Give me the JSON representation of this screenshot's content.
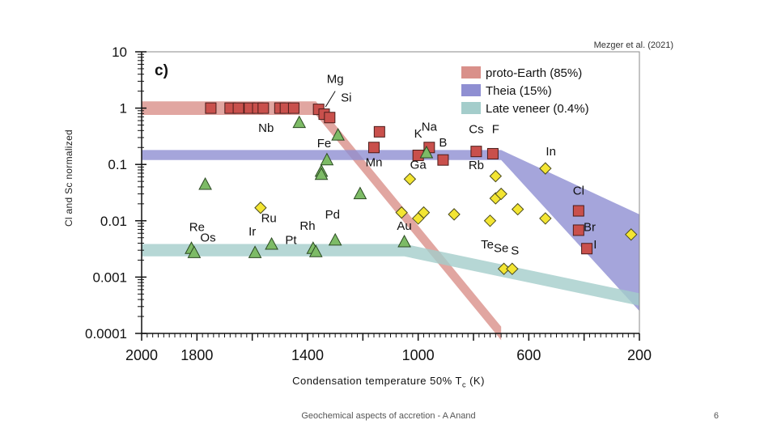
{
  "slide": {
    "credit": "Mezger et al. (2021)",
    "ylabel": "Cl and Sc normalized",
    "xlabel_main": "Condensation temperature 50% T",
    "xlabel_sub": "c",
    "xlabel_unit": " (K)",
    "footer": "Geochemical aspects of accretion - A Anand",
    "page_number": "6"
  },
  "chart_data": {
    "type": "scatter",
    "panel_label": "c)",
    "x_axis": {
      "ticks": [
        2000,
        1800,
        1400,
        1000,
        600,
        200
      ],
      "xlim": [
        2000,
        200
      ],
      "reversed": true
    },
    "y_axis": {
      "scale": "log",
      "ticks": [
        10,
        1,
        0.1,
        0.01,
        0.001,
        0.0001
      ],
      "tick_labels": [
        "10",
        "1",
        "0.1",
        "0.01",
        "0.001",
        "0.0001"
      ],
      "ylim": [
        0.0001,
        10
      ]
    },
    "legend": {
      "placement": "top-right",
      "entries": [
        {
          "name": "proto-Earth (85%)",
          "color": "#d9908a"
        },
        {
          "name": "Theia (15%)",
          "color": "#8f8fd2"
        },
        {
          "name": "Late veneer (0.4%)",
          "color": "#a4cdcb"
        }
      ]
    },
    "bands": [
      {
        "name": "proto-Earth (85%)",
        "color": "#d9908a",
        "path": [
          [
            2000,
            1
          ],
          [
            1370,
            1
          ],
          [
            700,
            0.0001
          ]
        ],
        "log_halfwidth": 0.12
      },
      {
        "name": "Theia (15%)",
        "color": "#8f8fd2",
        "upper": [
          [
            2000,
            0.18
          ],
          [
            700,
            0.18
          ],
          [
            200,
            0.013
          ]
        ],
        "lower": [
          [
            2000,
            0.12
          ],
          [
            700,
            0.12
          ],
          [
            200,
            0.00025
          ]
        ]
      },
      {
        "name": "Late veneer (0.4%)",
        "color": "#a4cdcb",
        "path": [
          [
            2000,
            0.003
          ],
          [
            1050,
            0.003
          ],
          [
            200,
            0.0004
          ]
        ],
        "log_halfwidth": 0.11
      }
    ],
    "marker_styles": {
      "square": {
        "fill": "#c9504c",
        "stroke": "#4a1c1a"
      },
      "triangle": {
        "fill": "#7dbb66",
        "stroke": "#2b4a22"
      },
      "diamond": {
        "fill": "#f3e532",
        "stroke": "#4a4a1c"
      }
    },
    "series": [
      {
        "marker": "square",
        "points": [
          [
            1750,
            1.0
          ],
          [
            1680,
            1.0
          ],
          [
            1650,
            1.0
          ],
          [
            1610,
            1.0
          ],
          [
            1580,
            1.0
          ],
          [
            1560,
            1.0
          ],
          [
            1500,
            1.0
          ],
          [
            1480,
            1.0
          ],
          [
            1450,
            1.0
          ],
          [
            1360,
            0.95
          ],
          [
            1340,
            0.78
          ],
          [
            1320,
            0.68
          ],
          [
            1140,
            0.38
          ],
          [
            1160,
            0.2
          ],
          [
            1000,
            0.145
          ],
          [
            960,
            0.2
          ],
          [
            910,
            0.12
          ],
          [
            790,
            0.17
          ],
          [
            730,
            0.155
          ],
          [
            420,
            0.015
          ],
          [
            420,
            0.0068
          ],
          [
            390,
            0.0032
          ]
        ]
      },
      {
        "marker": "triangle",
        "points": [
          [
            1820,
            0.0032
          ],
          [
            1810,
            0.0027
          ],
          [
            1770,
            0.044
          ],
          [
            1590,
            0.0027
          ],
          [
            1530,
            0.0038
          ],
          [
            1430,
            0.55
          ],
          [
            1380,
            0.0032
          ],
          [
            1370,
            0.0028
          ],
          [
            1350,
            0.075
          ],
          [
            1350,
            0.066
          ],
          [
            1330,
            0.12
          ],
          [
            1300,
            0.0045
          ],
          [
            1290,
            0.33
          ],
          [
            1210,
            0.03
          ],
          [
            1050,
            0.0042
          ],
          [
            970,
            0.16
          ]
        ]
      },
      {
        "marker": "diamond",
        "points": [
          [
            1570,
            0.017
          ],
          [
            1060,
            0.014
          ],
          [
            1030,
            0.055
          ],
          [
            1000,
            0.011
          ],
          [
            980,
            0.014
          ],
          [
            870,
            0.013
          ],
          [
            740,
            0.01
          ],
          [
            720,
            0.062
          ],
          [
            720,
            0.025
          ],
          [
            700,
            0.03
          ],
          [
            690,
            0.0014
          ],
          [
            660,
            0.0014
          ],
          [
            640,
            0.016
          ],
          [
            540,
            0.085
          ],
          [
            540,
            0.011
          ],
          [
            230,
            0.0057
          ]
        ]
      }
    ],
    "annotations": [
      {
        "text": "Mg",
        "x": 1300,
        "y": 2.8
      },
      {
        "text": "Si",
        "x": 1260,
        "y": 1.3
      },
      {
        "text": "Nb",
        "x": 1550,
        "y": 0.38
      },
      {
        "text": "Fe",
        "x": 1340,
        "y": 0.2
      },
      {
        "text": "Mn",
        "x": 1160,
        "y": 0.092
      },
      {
        "text": "K",
        "x": 1000,
        "y": 0.3
      },
      {
        "text": "Na",
        "x": 960,
        "y": 0.4
      },
      {
        "text": "B",
        "x": 910,
        "y": 0.21
      },
      {
        "text": "Ga",
        "x": 1000,
        "y": 0.084
      },
      {
        "text": "Cs",
        "x": 790,
        "y": 0.36
      },
      {
        "text": "F",
        "x": 720,
        "y": 0.36
      },
      {
        "text": "Rb",
        "x": 790,
        "y": 0.082
      },
      {
        "text": "In",
        "x": 520,
        "y": 0.145
      },
      {
        "text": "Cl",
        "x": 420,
        "y": 0.029
      },
      {
        "text": "Br",
        "x": 380,
        "y": 0.0066
      },
      {
        "text": "I",
        "x": 360,
        "y": 0.0032
      },
      {
        "text": "Te",
        "x": 750,
        "y": 0.0032
      },
      {
        "text": "Se",
        "x": 700,
        "y": 0.0028
      },
      {
        "text": "S",
        "x": 650,
        "y": 0.0025
      },
      {
        "text": "Au",
        "x": 1050,
        "y": 0.0069
      },
      {
        "text": "Re",
        "x": 1800,
        "y": 0.0066
      },
      {
        "text": "Os",
        "x": 1760,
        "y": 0.0043
      },
      {
        "text": "Ir",
        "x": 1600,
        "y": 0.0055
      },
      {
        "text": "Ru",
        "x": 1540,
        "y": 0.0094
      },
      {
        "text": "Pt",
        "x": 1460,
        "y": 0.0039
      },
      {
        "text": "Rh",
        "x": 1400,
        "y": 0.0069
      },
      {
        "text": "Pd",
        "x": 1310,
        "y": 0.011
      }
    ]
  }
}
